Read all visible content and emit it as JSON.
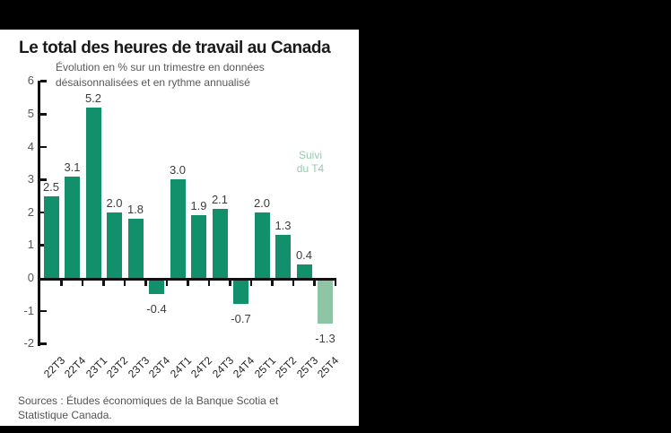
{
  "window": {
    "background_color": "#000000",
    "panel_color": "#ffffff"
  },
  "chart_data": {
    "type": "bar",
    "title": "Le total des heures de travail au Canada",
    "subtitle_lines": [
      "Évolution en % sur un trimestre en données",
      "désaisonnalisées et en rythme annualisé"
    ],
    "categories": [
      "22T3",
      "22T4",
      "23T1",
      "23T2",
      "23T3",
      "23T4",
      "24T1",
      "24T2",
      "24T3",
      "24T4",
      "25T1",
      "25T2",
      "25T3",
      "25T4"
    ],
    "values": [
      2.5,
      3.1,
      5.2,
      2.0,
      1.8,
      -0.4,
      3.0,
      1.9,
      2.1,
      -0.7,
      2.0,
      1.3,
      0.4,
      -1.3
    ],
    "value_labels": [
      "2.5",
      "3.1",
      "5.2",
      "2.0",
      "1.8",
      "-0.4",
      "3.0",
      "1.9",
      "2.1",
      "-0.7",
      "2.0",
      "1.3",
      "0.4",
      "-1.3"
    ],
    "highlight_index": 13,
    "annotation_lines": [
      "Suivi",
      "du T4"
    ],
    "annotation_color": "#99c9ad",
    "bar_color": "#12906b",
    "highlight_color": "#8ec5a4",
    "axis_color": "#111111",
    "ylim": [
      -2,
      6
    ],
    "yticks": [
      6,
      5,
      4,
      3,
      2,
      1,
      0,
      -1,
      -2
    ],
    "grid": false,
    "legend": "none",
    "xlabel": "",
    "ylabel": ""
  },
  "source": {
    "lines": [
      "Sources : Études économiques de la Banque Scotia et",
      "Statistique Canada."
    ]
  }
}
